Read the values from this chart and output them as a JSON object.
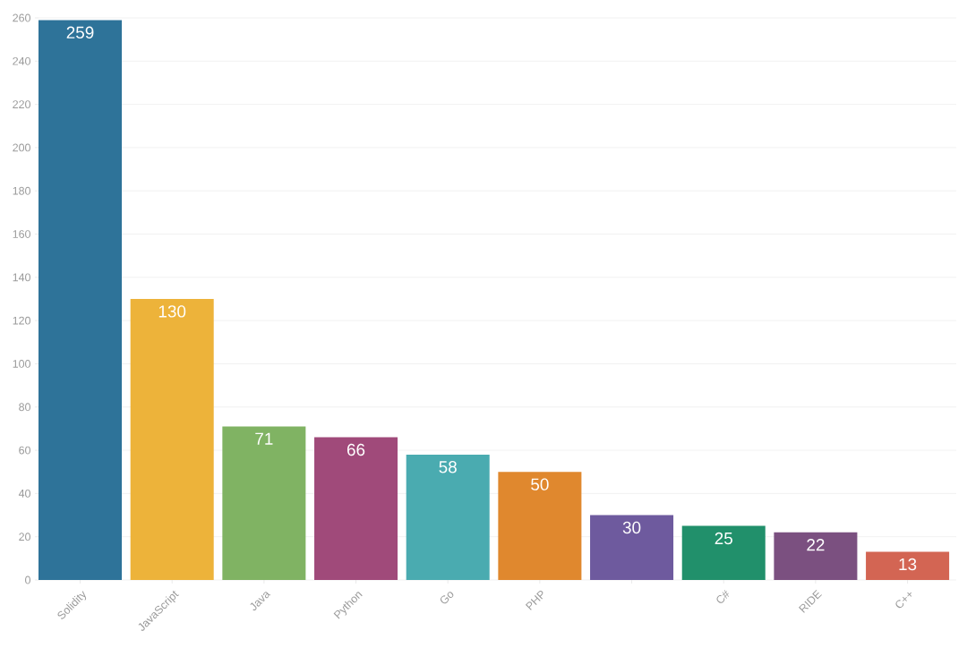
{
  "chart_data": {
    "type": "bar",
    "categories": [
      "Solidity",
      "JavaScript",
      "Java",
      "Python",
      "Go",
      "PHP",
      null,
      "C#",
      "RIDE",
      "C++"
    ],
    "values": [
      259,
      130,
      71,
      66,
      58,
      50,
      30,
      25,
      22,
      13
    ],
    "colors": [
      "#2e7399",
      "#edb33a",
      "#80b363",
      "#a04a7a",
      "#4aabb0",
      "#e0882e",
      "#6e5a9e",
      "#21906b",
      "#7b5080",
      "#d36553"
    ],
    "ylim": [
      0,
      260
    ],
    "yticks": [
      0,
      20,
      40,
      60,
      80,
      100,
      120,
      140,
      160,
      180,
      200,
      220,
      240,
      260
    ],
    "grid": "y",
    "data_labels": true
  }
}
